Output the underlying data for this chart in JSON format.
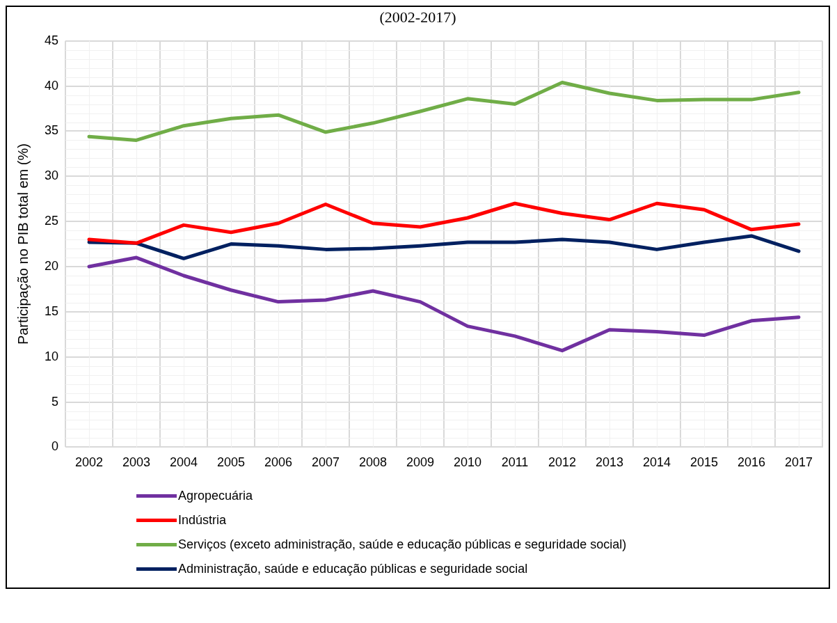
{
  "chart_data": {
    "type": "line",
    "title": "(2002-2017)",
    "ylabel": "Participação no PIB total em (%)",
    "categories": [
      "2002",
      "2003",
      "2004",
      "2005",
      "2006",
      "2007",
      "2008",
      "2009",
      "2010",
      "2011",
      "2012",
      "2013",
      "2014",
      "2015",
      "2016",
      "2017"
    ],
    "series": [
      {
        "name": "Agropecuária",
        "color": "#7030a0",
        "values": [
          20.0,
          21.0,
          19.0,
          17.4,
          16.1,
          16.3,
          17.3,
          16.1,
          13.4,
          12.3,
          10.7,
          13.0,
          12.8,
          12.4,
          14.0,
          14.4
        ]
      },
      {
        "name": "Indústria",
        "color": "#ff0000",
        "values": [
          23.0,
          22.6,
          24.6,
          23.8,
          24.8,
          26.9,
          24.8,
          24.4,
          25.4,
          27.0,
          25.9,
          25.2,
          27.0,
          26.3,
          24.1,
          24.7
        ]
      },
      {
        "name": "Serviços (exceto administração, saúde e educação públicas e seguridade social)",
        "color": "#70ad47",
        "values": [
          34.4,
          34.0,
          35.6,
          36.4,
          36.8,
          34.9,
          35.9,
          37.2,
          38.6,
          38.0,
          40.4,
          39.2,
          38.4,
          38.5,
          38.5,
          39.3
        ]
      },
      {
        "name": "Administração, saúde e educação públicas e seguridade social",
        "color": "#002060",
        "values": [
          22.7,
          22.6,
          20.9,
          22.5,
          22.3,
          21.9,
          22.0,
          22.3,
          22.7,
          22.7,
          23.0,
          22.7,
          21.9,
          22.7,
          23.4,
          21.7
        ]
      }
    ],
    "ylim": [
      0,
      45
    ],
    "yticks": [
      0,
      5,
      10,
      15,
      20,
      25,
      30,
      35,
      40,
      45
    ],
    "grid": true,
    "legend": "bottom",
    "marker": "none",
    "line_style": "solid"
  }
}
